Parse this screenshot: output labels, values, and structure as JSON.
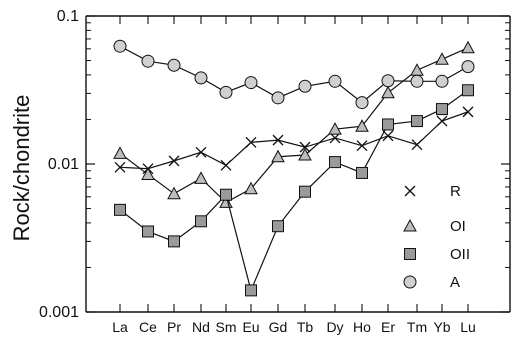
{
  "chart_data": {
    "type": "line",
    "scale": "log-y",
    "title": "",
    "xlabel": "",
    "ylabel": "Rock/chondrite",
    "ylim": [
      0.001,
      0.1
    ],
    "yticks": [
      0.1,
      0.01,
      0.001
    ],
    "ytick_labels": [
      "0.1",
      "0.01",
      "0.001"
    ],
    "categories": [
      "La",
      "Ce",
      "Pr",
      "Nd",
      "Sm",
      "Eu",
      "Gd",
      "Tb",
      "Dy",
      "Ho",
      "Er",
      "Tm",
      "Yb",
      "Lu"
    ],
    "legend_position": "bottom-right",
    "colors": {
      "axis": "#111111",
      "line": "#111111",
      "marker_fill_light": "#d0d0d0",
      "marker_fill_mid": "#bdbdbd",
      "marker_fill_dark": "#9a9a9a"
    },
    "series": [
      {
        "name": "R",
        "marker": "x",
        "values": [
          0.0095,
          0.0093,
          0.0105,
          0.012,
          0.0098,
          0.014,
          0.0145,
          0.013,
          0.015,
          0.0133,
          0.0155,
          0.0135,
          0.0195,
          0.0225
        ]
      },
      {
        "name": "OI",
        "marker": "triangle",
        "values": [
          0.0118,
          0.0085,
          0.0063,
          0.008,
          0.0055,
          0.0068,
          0.0112,
          0.0115,
          0.0172,
          0.018,
          0.0303,
          0.043,
          0.051,
          0.061
        ]
      },
      {
        "name": "OII",
        "marker": "square",
        "values": [
          0.0049,
          0.0035,
          0.003,
          0.0041,
          0.0062,
          0.0014,
          0.0038,
          0.0065,
          0.0103,
          0.0087,
          0.0185,
          0.0195,
          0.0235,
          0.0315
        ]
      },
      {
        "name": "A",
        "marker": "circle",
        "values": [
          0.0625,
          0.0495,
          0.0465,
          0.0382,
          0.0305,
          0.0355,
          0.028,
          0.0335,
          0.0362,
          0.026,
          0.0365,
          0.0362,
          0.0362,
          0.0455
        ]
      }
    ]
  }
}
